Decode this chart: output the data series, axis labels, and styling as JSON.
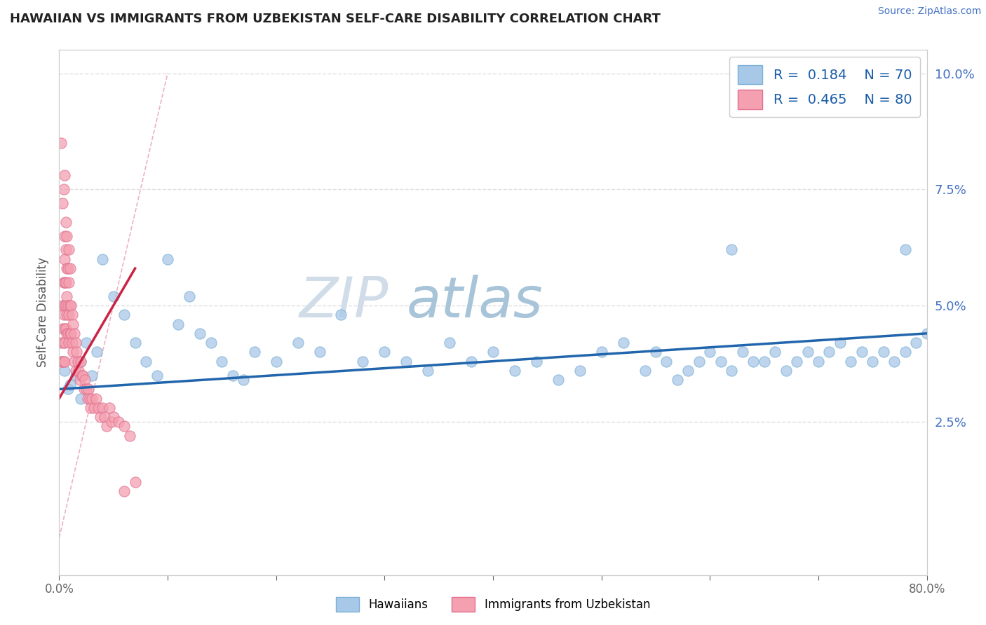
{
  "title": "HAWAIIAN VS IMMIGRANTS FROM UZBEKISTAN SELF-CARE DISABILITY CORRELATION CHART",
  "source_text": "Source: ZipAtlas.com",
  "ylabel": "Self-Care Disability",
  "x_min": 0.0,
  "x_max": 0.8,
  "y_min": -0.008,
  "y_max": 0.105,
  "y_ticks_right": [
    0.025,
    0.05,
    0.075,
    0.1
  ],
  "y_tick_labels_right": [
    "2.5%",
    "5.0%",
    "7.5%",
    "10.0%"
  ],
  "hawaiians_color": "#a8c8e8",
  "hawaiians_edge_color": "#7ab0d4",
  "uzbekistan_color": "#f4a0b0",
  "uzbekistan_edge_color": "#e07090",
  "hawaiians_trend_color": "#2166ac",
  "uzbekistan_trend_color": "#cc2244",
  "diag_color": "#e8a0b0",
  "R_hawaiians": 0.184,
  "N_hawaiians": 70,
  "R_uzbekistan": 0.465,
  "N_uzbekistan": 80,
  "watermark": "ZIPatlas",
  "watermark_color_zip": "#c8d4e0",
  "watermark_color_atlas": "#a8c4d8",
  "background_color": "#ffffff",
  "grid_color": "#d8d8d8",
  "legend_label_1": "Hawaiians",
  "legend_label_2": "Immigrants from Uzbekistan",
  "hawaiians_x": [
    0.005,
    0.008,
    0.01,
    0.015,
    0.02,
    0.02,
    0.025,
    0.03,
    0.035,
    0.04,
    0.05,
    0.06,
    0.07,
    0.08,
    0.09,
    0.1,
    0.11,
    0.12,
    0.13,
    0.14,
    0.15,
    0.16,
    0.17,
    0.18,
    0.2,
    0.22,
    0.24,
    0.26,
    0.28,
    0.3,
    0.32,
    0.34,
    0.36,
    0.38,
    0.4,
    0.42,
    0.44,
    0.46,
    0.48,
    0.5,
    0.52,
    0.54,
    0.55,
    0.56,
    0.57,
    0.58,
    0.59,
    0.6,
    0.61,
    0.62,
    0.63,
    0.64,
    0.65,
    0.66,
    0.67,
    0.68,
    0.69,
    0.7,
    0.71,
    0.72,
    0.73,
    0.74,
    0.75,
    0.76,
    0.77,
    0.78,
    0.79,
    0.8,
    0.62,
    0.78
  ],
  "hawaiians_y": [
    0.036,
    0.032,
    0.033,
    0.035,
    0.03,
    0.038,
    0.042,
    0.035,
    0.04,
    0.06,
    0.052,
    0.048,
    0.042,
    0.038,
    0.035,
    0.06,
    0.046,
    0.052,
    0.044,
    0.042,
    0.038,
    0.035,
    0.034,
    0.04,
    0.038,
    0.042,
    0.04,
    0.048,
    0.038,
    0.04,
    0.038,
    0.036,
    0.042,
    0.038,
    0.04,
    0.036,
    0.038,
    0.034,
    0.036,
    0.04,
    0.042,
    0.036,
    0.04,
    0.038,
    0.034,
    0.036,
    0.038,
    0.04,
    0.038,
    0.036,
    0.04,
    0.038,
    0.038,
    0.04,
    0.036,
    0.038,
    0.04,
    0.038,
    0.04,
    0.042,
    0.038,
    0.04,
    0.038,
    0.04,
    0.038,
    0.04,
    0.042,
    0.044,
    0.062,
    0.062
  ],
  "uzbekistan_x": [
    0.002,
    0.002,
    0.003,
    0.003,
    0.003,
    0.004,
    0.004,
    0.004,
    0.004,
    0.005,
    0.005,
    0.005,
    0.005,
    0.005,
    0.005,
    0.005,
    0.006,
    0.006,
    0.006,
    0.006,
    0.006,
    0.007,
    0.007,
    0.007,
    0.007,
    0.008,
    0.008,
    0.008,
    0.009,
    0.009,
    0.009,
    0.01,
    0.01,
    0.01,
    0.011,
    0.011,
    0.012,
    0.012,
    0.013,
    0.013,
    0.014,
    0.014,
    0.015,
    0.015,
    0.016,
    0.017,
    0.018,
    0.019,
    0.02,
    0.021,
    0.022,
    0.023,
    0.024,
    0.025,
    0.026,
    0.027,
    0.028,
    0.029,
    0.03,
    0.032,
    0.034,
    0.036,
    0.038,
    0.04,
    0.042,
    0.044,
    0.046,
    0.048,
    0.05,
    0.055,
    0.06,
    0.065,
    0.07,
    0.002,
    0.003,
    0.004,
    0.005,
    0.007,
    0.009,
    0.06
  ],
  "uzbekistan_y": [
    0.042,
    0.038,
    0.05,
    0.045,
    0.038,
    0.055,
    0.048,
    0.042,
    0.038,
    0.065,
    0.06,
    0.055,
    0.05,
    0.045,
    0.042,
    0.038,
    0.068,
    0.062,
    0.055,
    0.05,
    0.045,
    0.058,
    0.052,
    0.048,
    0.044,
    0.058,
    0.05,
    0.044,
    0.055,
    0.048,
    0.042,
    0.058,
    0.05,
    0.044,
    0.05,
    0.044,
    0.048,
    0.042,
    0.046,
    0.04,
    0.044,
    0.038,
    0.042,
    0.036,
    0.04,
    0.038,
    0.036,
    0.034,
    0.038,
    0.035,
    0.035,
    0.032,
    0.034,
    0.032,
    0.03,
    0.032,
    0.03,
    0.028,
    0.03,
    0.028,
    0.03,
    0.028,
    0.026,
    0.028,
    0.026,
    0.024,
    0.028,
    0.025,
    0.026,
    0.025,
    0.024,
    0.022,
    0.012,
    0.085,
    0.072,
    0.075,
    0.078,
    0.065,
    0.062,
    0.01
  ],
  "hawaiians_trend_x": [
    0.0,
    0.8
  ],
  "hawaiians_trend_y": [
    0.032,
    0.044
  ],
  "uzbekistan_trend_x": [
    0.0,
    0.07
  ],
  "uzbekistan_trend_y": [
    0.03,
    0.058
  ]
}
